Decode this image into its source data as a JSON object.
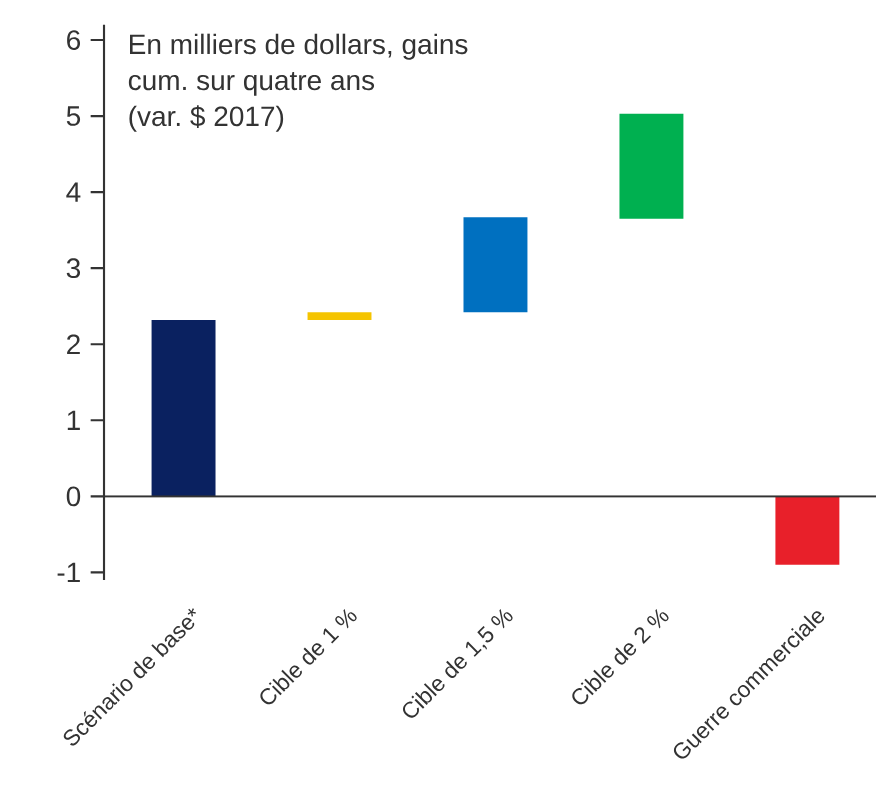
{
  "chart_data": {
    "type": "bar",
    "annotations": [
      "En milliers de dollars, gains",
      "cum. sur quatre ans",
      "(var. $ 2017)"
    ],
    "categories": [
      "Scénario de base*",
      "Cible de 1 %",
      "Cible de 1,5 %",
      "Cible de 2 %",
      "Guerre commerciale"
    ],
    "values": [
      2.32,
      0.1,
      1.25,
      1.38,
      -0.9
    ],
    "base": [
      0,
      2.32,
      2.42,
      3.65,
      0
    ],
    "colors": [
      "#0a2160",
      "#f5c400",
      "#0070c0",
      "#00b050",
      "#e8202a"
    ],
    "ylim": [
      -1.1,
      6.2
    ],
    "yticks": [
      -1,
      0,
      1,
      2,
      3,
      4,
      5,
      6
    ]
  }
}
